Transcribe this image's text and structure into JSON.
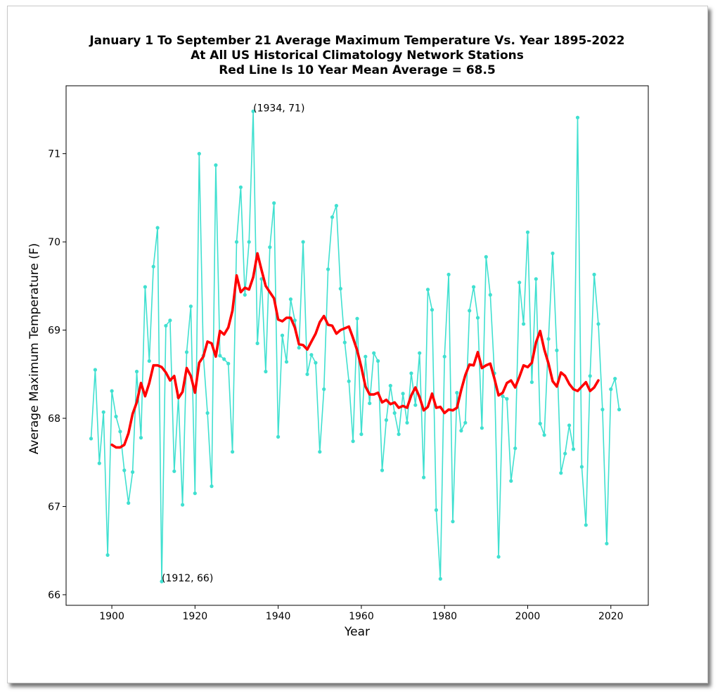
{
  "chart_data": {
    "type": "line",
    "title_lines": [
      "January 1 To September 21 Average Maximum Temperature Vs. Year 1895-2022",
      "At All US Historical Climatology Network Stations",
      "Red Line Is 10 Year Mean  Average = 68.5"
    ],
    "xlabel": "Year",
    "ylabel": "Average Maximum Temperature (F)",
    "xlim": [
      1889,
      2029
    ],
    "ylim": [
      65.88,
      71.77
    ],
    "xticks": [
      1900,
      1920,
      1940,
      1960,
      1980,
      2000,
      2020
    ],
    "yticks": [
      66,
      67,
      68,
      69,
      70,
      71
    ],
    "colors": {
      "annual": "#40e0d0",
      "mean": "#ff0000"
    },
    "annotations": [
      {
        "text": "(1934, 71)",
        "x": 1934,
        "y": 71.48
      },
      {
        "text": "(1912, 66)",
        "x": 1912,
        "y": 66.15
      }
    ],
    "series": [
      {
        "key": "annual",
        "x": [
          1895,
          1896,
          1897,
          1898,
          1899,
          1900,
          1901,
          1902,
          1903,
          1904,
          1905,
          1906,
          1907,
          1908,
          1909,
          1910,
          1911,
          1912,
          1913,
          1914,
          1915,
          1916,
          1917,
          1918,
          1919,
          1920,
          1921,
          1922,
          1923,
          1924,
          1925,
          1926,
          1927,
          1928,
          1929,
          1930,
          1931,
          1932,
          1933,
          1934,
          1935,
          1936,
          1937,
          1938,
          1939,
          1940,
          1941,
          1942,
          1943,
          1944,
          1945,
          1946,
          1947,
          1948,
          1949,
          1950,
          1951,
          1952,
          1953,
          1954,
          1955,
          1956,
          1957,
          1958,
          1959,
          1960,
          1961,
          1962,
          1963,
          1964,
          1965,
          1966,
          1967,
          1968,
          1969,
          1970,
          1971,
          1972,
          1973,
          1974,
          1975,
          1976,
          1977,
          1978,
          1979,
          1980,
          1981,
          1982,
          1983,
          1984,
          1985,
          1986,
          1987,
          1988,
          1989,
          1990,
          1991,
          1992,
          1993,
          1994,
          1995,
          1996,
          1997,
          1998,
          1999,
          2000,
          2001,
          2002,
          2003,
          2004,
          2005,
          2006,
          2007,
          2008,
          2009,
          2010,
          2011,
          2012,
          2013,
          2014,
          2015,
          2016,
          2017,
          2018,
          2019,
          2020,
          2021,
          2022
        ],
        "values": [
          67.77,
          68.55,
          67.49,
          68.07,
          66.45,
          68.31,
          68.02,
          67.85,
          67.41,
          67.04,
          67.39,
          68.53,
          67.78,
          69.49,
          68.65,
          69.72,
          70.16,
          66.15,
          69.05,
          69.11,
          67.4,
          68.24,
          67.02,
          68.75,
          69.27,
          67.15,
          71.0,
          68.71,
          68.06,
          67.23,
          70.87,
          68.71,
          68.67,
          68.62,
          67.62,
          70.0,
          70.62,
          69.4,
          70.0,
          71.48,
          68.85,
          69.58,
          68.53,
          69.94,
          70.44,
          67.79,
          68.94,
          68.64,
          69.35,
          69.11,
          68.8,
          70.0,
          68.5,
          68.72,
          68.63,
          67.62,
          68.33,
          69.69,
          70.28,
          70.41,
          69.47,
          68.86,
          68.42,
          67.74,
          69.13,
          67.82,
          68.7,
          68.17,
          68.74,
          68.65,
          67.41,
          67.98,
          68.37,
          68.06,
          67.82,
          68.28,
          67.95,
          68.51,
          68.15,
          68.74,
          67.33,
          69.46,
          69.23,
          66.96,
          66.18,
          68.7,
          69.63,
          66.83,
          68.29,
          67.86,
          67.95,
          69.22,
          69.49,
          69.14,
          67.89,
          69.83,
          69.4,
          68.51,
          66.43,
          68.25,
          68.22,
          67.29,
          67.66,
          69.54,
          69.07,
          70.11,
          68.41,
          69.58,
          67.94,
          67.81,
          68.9,
          69.87,
          68.77,
          67.38,
          67.6,
          67.92,
          67.65,
          71.41,
          67.45,
          66.79,
          68.48,
          69.63,
          69.07,
          68.1,
          66.58,
          68.33,
          68.45,
          68.1
        ]
      },
      {
        "key": "mean",
        "x": [
          1900,
          1901,
          1902,
          1903,
          1904,
          1905,
          1906,
          1907,
          1908,
          1909,
          1910,
          1911,
          1912,
          1913,
          1914,
          1915,
          1916,
          1917,
          1918,
          1919,
          1920,
          1921,
          1922,
          1923,
          1924,
          1925,
          1926,
          1927,
          1928,
          1929,
          1930,
          1931,
          1932,
          1933,
          1934,
          1935,
          1936,
          1937,
          1938,
          1939,
          1940,
          1941,
          1942,
          1943,
          1944,
          1945,
          1946,
          1947,
          1948,
          1949,
          1950,
          1951,
          1952,
          1953,
          1954,
          1955,
          1956,
          1957,
          1958,
          1959,
          1960,
          1961,
          1962,
          1963,
          1964,
          1965,
          1966,
          1967,
          1968,
          1969,
          1970,
          1971,
          1972,
          1973,
          1974,
          1975,
          1976,
          1977,
          1978,
          1979,
          1980,
          1981,
          1982,
          1983,
          1984,
          1985,
          1986,
          1987,
          1988,
          1989,
          1990,
          1991,
          1992,
          1993,
          1994,
          1995,
          1996,
          1997,
          1998,
          1999,
          2000,
          2001,
          2002,
          2003,
          2004,
          2005,
          2006,
          2007,
          2008,
          2009,
          2010,
          2011,
          2012,
          2013,
          2014,
          2015,
          2016,
          2017
        ],
        "values": [
          67.7,
          67.67,
          67.67,
          67.7,
          67.83,
          68.05,
          68.18,
          68.4,
          68.25,
          68.4,
          68.6,
          68.6,
          68.58,
          68.52,
          68.43,
          68.48,
          68.23,
          68.3,
          68.57,
          68.48,
          68.29,
          68.63,
          68.7,
          68.87,
          68.85,
          68.7,
          68.99,
          68.95,
          69.03,
          69.22,
          69.62,
          69.43,
          69.48,
          69.46,
          69.6,
          69.87,
          69.68,
          69.5,
          69.43,
          69.36,
          69.12,
          69.1,
          69.14,
          69.14,
          69.03,
          68.84,
          68.83,
          68.78,
          68.87,
          68.96,
          69.09,
          69.16,
          69.06,
          69.05,
          68.96,
          69.0,
          69.02,
          69.04,
          68.91,
          68.77,
          68.58,
          68.36,
          68.27,
          68.27,
          68.29,
          68.18,
          68.21,
          68.16,
          68.18,
          68.12,
          68.14,
          68.12,
          68.26,
          68.35,
          68.24,
          68.09,
          68.13,
          68.28,
          68.12,
          68.13,
          68.06,
          68.1,
          68.09,
          68.12,
          68.32,
          68.49,
          68.61,
          68.6,
          68.75,
          68.57,
          68.6,
          68.62,
          68.45,
          68.26,
          68.29,
          68.4,
          68.43,
          68.35,
          68.47,
          68.6,
          68.58,
          68.63,
          68.86,
          68.99,
          68.78,
          68.62,
          68.42,
          68.36,
          68.52,
          68.48,
          68.39,
          68.33,
          68.31,
          68.36,
          68.41,
          68.31,
          68.35,
          68.43
        ]
      }
    ]
  }
}
